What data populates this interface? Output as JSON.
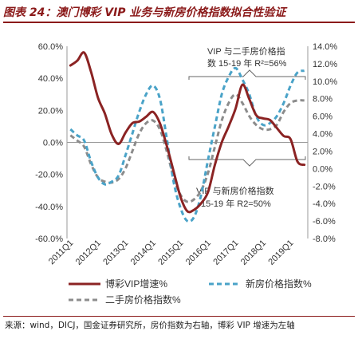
{
  "figure": {
    "title": "图表 24：澳门博彩 VIP 业务与新房价格指数拟合性验证",
    "source": "来源：wind，DICJ，国金证券研究所，房价指数为右轴，博彩 VIP 增速为左轴"
  },
  "annotations": {
    "top_line1": "VIP 与二手房价格指",
    "top_line2": "数 15-19 年 R²=56%",
    "bottom_line1": "VIP 与新房价格指数",
    "bottom_line2": "15-19 年 R2=50%"
  },
  "chart_data": {
    "type": "line",
    "title": "",
    "x": [
      "2011Q1",
      "2011Q2",
      "2011Q3",
      "2011Q4",
      "2012Q1",
      "2012Q2",
      "2012Q3",
      "2012Q4",
      "2013Q1",
      "2013Q2",
      "2013Q3",
      "2013Q4",
      "2014Q1",
      "2014Q2",
      "2014Q3",
      "2014Q4",
      "2015Q1",
      "2015Q2",
      "2015Q3",
      "2015Q4",
      "2016Q1",
      "2016Q2",
      "2016Q3",
      "2016Q4",
      "2017Q1",
      "2017Q2",
      "2017Q3",
      "2017Q4",
      "2018Q1",
      "2018Q2",
      "2018Q3",
      "2018Q4",
      "2019Q1",
      "2019Q2",
      "2019Q3"
    ],
    "x_tick_labels": [
      "2011Q1",
      "2012Q1",
      "2013Q1",
      "2014Q1",
      "2015Q1",
      "2016Q1",
      "2017Q1",
      "2018Q1",
      "2019Q1"
    ],
    "left_axis": {
      "ylim": [
        -60,
        60
      ],
      "ticks": [
        "60.0%",
        "40.0%",
        "20.0%",
        "0.0%",
        "-20.0%",
        "-40.0%",
        "-60.0%"
      ]
    },
    "right_axis": {
      "ylim": [
        -8,
        14
      ],
      "ticks": [
        "14.0%",
        "12.0%",
        "10.0%",
        "8.0%",
        "6.0%",
        "4.0%",
        "2.0%",
        "0.0%",
        "-2.0%",
        "-4.0%",
        "-6.0%",
        "-8.0%"
      ]
    },
    "series": [
      {
        "name": "博彩VIP增速%",
        "axis": "left",
        "color": "#8b2323",
        "style": "solid",
        "values": [
          48,
          51,
          56,
          44,
          28,
          18,
          5,
          -1,
          6,
          12,
          13,
          16,
          19,
          12,
          -2,
          -18,
          -34,
          -43,
          -42,
          -38,
          -31,
          -14,
          0,
          10,
          21,
          36,
          27,
          17,
          15,
          14,
          9,
          4,
          2,
          -12,
          -14
        ]
      },
      {
        "name": "新房价格指数%",
        "axis": "right",
        "color": "#4aa3c8",
        "style": "dashed",
        "values": [
          4.5,
          3.8,
          3.2,
          0.8,
          -1.0,
          -1.8,
          -1.5,
          -0.8,
          1.5,
          4.0,
          6.5,
          8.5,
          9.5,
          8.0,
          3.5,
          -1.5,
          -4.5,
          -6.0,
          -5.5,
          -3.0,
          1.0,
          4.8,
          8.5,
          10.5,
          11.5,
          10.2,
          8.5,
          6.0,
          5.0,
          5.2,
          6.0,
          7.5,
          9.5,
          11.0,
          11.2
        ]
      },
      {
        "name": "二手房价格指数%",
        "axis": "right",
        "color": "#8c8c8c",
        "style": "dashed",
        "values": [
          3.8,
          3.2,
          2.5,
          0.5,
          -1.0,
          -1.5,
          -1.6,
          -1.2,
          0.0,
          2.0,
          4.0,
          5.2,
          5.5,
          4.5,
          2.0,
          -1.0,
          -3.0,
          -3.8,
          -3.5,
          -2.5,
          -0.5,
          2.5,
          5.5,
          7.5,
          8.5,
          7.5,
          6.0,
          5.0,
          4.5,
          4.5,
          5.0,
          6.5,
          7.5,
          7.8,
          7.8
        ]
      }
    ],
    "grid": false,
    "legend": "bottom"
  }
}
